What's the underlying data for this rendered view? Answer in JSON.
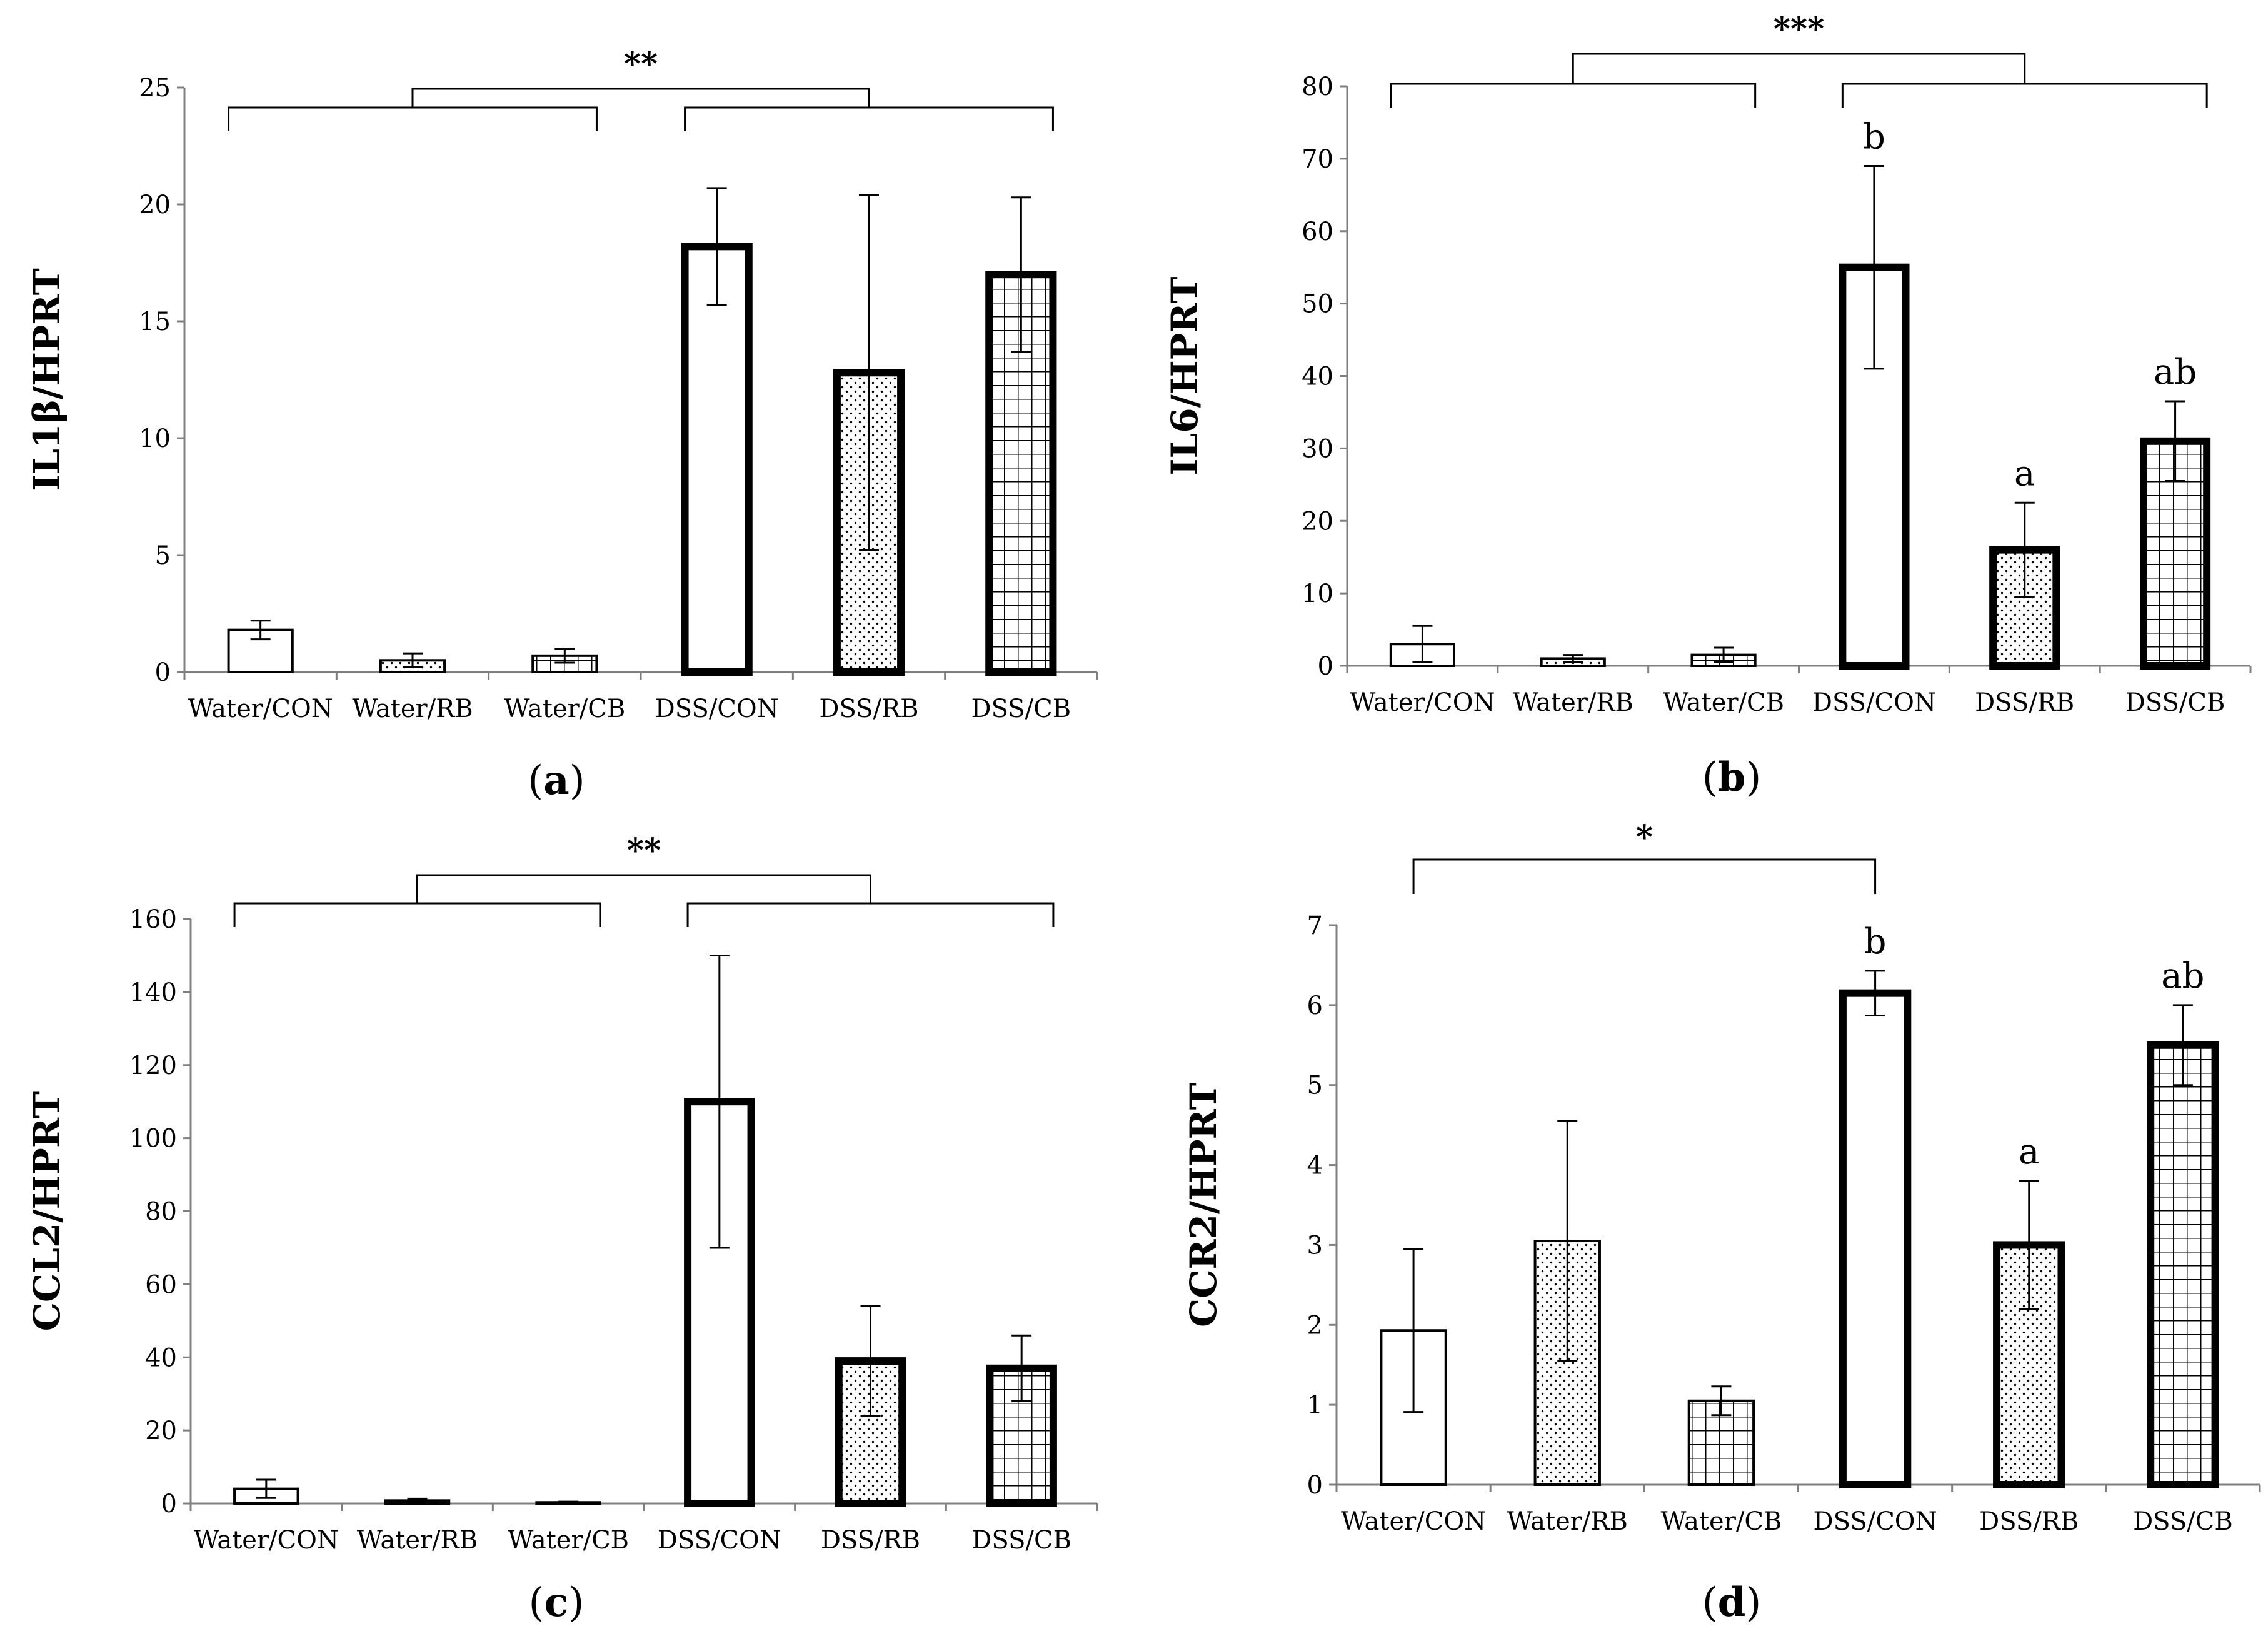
{
  "chart_data": [
    {
      "type": "bar",
      "panel_label": "a",
      "ylabel": "IL1β/HPRT",
      "ylim": [
        0,
        25
      ],
      "yticks": [
        "0",
        "5",
        "10",
        "15",
        "20",
        "25"
      ],
      "categories": [
        "Water/CON",
        "Water/RB",
        "Water/CB",
        "DSS/CON",
        "DSS/RB",
        "DSS/CB"
      ],
      "values": [
        1.8,
        0.5,
        0.7,
        18.2,
        12.8,
        17.0
      ],
      "errors": [
        0.4,
        0.3,
        0.3,
        2.5,
        7.6,
        3.3
      ],
      "patterns": [
        "blank",
        "dots",
        "grid",
        "blank",
        "dots",
        "grid"
      ],
      "bold": [
        false,
        false,
        false,
        true,
        true,
        true
      ],
      "letters": [
        "",
        "",
        "",
        "",
        "",
        ""
      ],
      "significance": {
        "label": "**",
        "left_group": [
          0,
          2
        ],
        "right_group": [
          3,
          5
        ]
      }
    },
    {
      "type": "bar",
      "panel_label": "b",
      "ylabel": "IL6/HPRT",
      "ylim": [
        0,
        80
      ],
      "yticks": [
        "0",
        "10",
        "20",
        "30",
        "40",
        "50",
        "60",
        "70",
        "80"
      ],
      "categories": [
        "Water/CON",
        "Water/RB",
        "Water/CB",
        "DSS/CON",
        "DSS/RB",
        "DSS/CB"
      ],
      "values": [
        3.0,
        1.0,
        1.5,
        55.0,
        16.0,
        31.0
      ],
      "errors": [
        2.5,
        0.5,
        1.0,
        14.0,
        6.5,
        5.5
      ],
      "patterns": [
        "blank",
        "dots",
        "grid",
        "blank",
        "dots",
        "grid"
      ],
      "bold": [
        false,
        false,
        false,
        true,
        true,
        true
      ],
      "letters": [
        "",
        "",
        "",
        "b",
        "a",
        "ab"
      ],
      "significance": {
        "label": "***",
        "left_group": [
          0,
          2
        ],
        "right_group": [
          3,
          5
        ]
      }
    },
    {
      "type": "bar",
      "panel_label": "c",
      "ylabel": "CCL2/HPRT",
      "ylim": [
        0,
        160
      ],
      "yticks": [
        "0",
        "20",
        "40",
        "60",
        "80",
        "100",
        "120",
        "140",
        "160"
      ],
      "categories": [
        "Water/CON",
        "Water/RB",
        "Water/CB",
        "DSS/CON",
        "DSS/RB",
        "DSS/CB"
      ],
      "values": [
        4.0,
        0.8,
        0.3,
        110.0,
        39.0,
        37.0
      ],
      "errors": [
        2.5,
        0.5,
        0.2,
        40.0,
        15.0,
        9.0
      ],
      "patterns": [
        "blank",
        "dots",
        "grid",
        "blank",
        "dots",
        "grid"
      ],
      "bold": [
        false,
        false,
        false,
        true,
        true,
        true
      ],
      "letters": [
        "",
        "",
        "",
        "",
        "",
        ""
      ],
      "significance": {
        "label": "**",
        "left_group": [
          0,
          2
        ],
        "right_group": [
          3,
          5
        ]
      }
    },
    {
      "type": "bar",
      "panel_label": "d",
      "ylabel": "CCR2/HPRT",
      "ylim": [
        0,
        7
      ],
      "yticks": [
        "0",
        "1",
        "2",
        "3",
        "4",
        "5",
        "6",
        "7"
      ],
      "categories": [
        "Water/CON",
        "Water/RB",
        "Water/CB",
        "DSS/CON",
        "DSS/RB",
        "DSS/CB"
      ],
      "values": [
        1.93,
        3.05,
        1.05,
        6.15,
        3.0,
        5.5
      ],
      "errors": [
        1.02,
        1.5,
        0.18,
        0.28,
        0.8,
        0.5
      ],
      "patterns": [
        "blank",
        "dots",
        "grid",
        "blank",
        "dots",
        "grid"
      ],
      "bold": [
        false,
        false,
        false,
        true,
        true,
        true
      ],
      "letters": [
        "",
        "",
        "",
        "b",
        "a",
        "ab"
      ],
      "significance": {
        "label": "*",
        "bars": [
          0,
          3
        ]
      }
    }
  ]
}
